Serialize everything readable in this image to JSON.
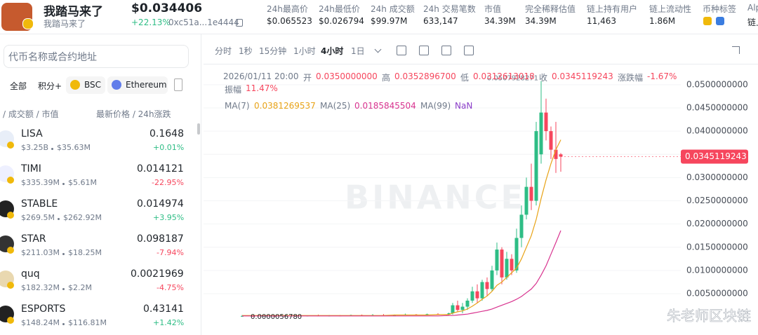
{
  "header": {
    "name": "我踏马来了",
    "subname": "我踏马来了",
    "price": "$0.034406",
    "change": "+22.13%",
    "address": "0xc51a...1e4444",
    "stats": [
      {
        "label": "24h最高价",
        "value": "$0.065523"
      },
      {
        "label": "24h最低价",
        "value": "$0.026794"
      },
      {
        "label": "24h 成交额",
        "value": "$99.97M"
      },
      {
        "label": "24h 交易笔数",
        "value": "633,147"
      },
      {
        "label": "市值",
        "value": "34.39M"
      },
      {
        "label": "完全稀释估值",
        "value": "34.39M"
      },
      {
        "label": "链上持有用户",
        "value": "11,463"
      },
      {
        "label": "链上流动性",
        "value": "1.86M"
      },
      {
        "label": "币种标签",
        "value": ""
      },
      {
        "label": "Alp",
        "value": "链上"
      }
    ]
  },
  "sidebar": {
    "search_placeholder": "代币名称或合约地址",
    "tabs": [
      "全部",
      "积分+",
      "BSC",
      "Ethereum"
    ],
    "col_left": "/ 成交额 / 市值",
    "col_right": "最新价格 / 24h涨跌",
    "tokens": [
      {
        "symbol": "LISA",
        "volume": "$3.25B",
        "mcap": "$35.63M",
        "price": "0.1648",
        "change": "+0.01%"
      },
      {
        "symbol": "TIMI",
        "volume": "$335.39M",
        "mcap": "$5.61M",
        "price": "0.014121",
        "change": "-22.95%"
      },
      {
        "symbol": "STABLE",
        "volume": "$269.5M",
        "mcap": "$262.92M",
        "price": "0.014974",
        "change": "+3.95%"
      },
      {
        "symbol": "STAR",
        "volume": "$211.03M",
        "mcap": "$18.25M",
        "price": "0.098187",
        "change": "-7.94%"
      },
      {
        "symbol": "quq",
        "volume": "$182.32M",
        "mcap": "$2.2M",
        "price": "0.0021969",
        "change": "-4.75%"
      },
      {
        "symbol": "ESPORTS",
        "volume": "$148.24M",
        "mcap": "$116.81M",
        "price": "0.43141",
        "change": "+1.42%"
      }
    ]
  },
  "toolbar": {
    "intervals": [
      "分时",
      "1秒",
      "15分钟",
      "1小时",
      "4小时",
      "1日"
    ],
    "active_index": 4
  },
  "chart": {
    "time": "2026/01/11 20:00",
    "fields": [
      {
        "label": "开",
        "value": "0.0350000000"
      },
      {
        "label": "高",
        "value": "0.0352896700"
      },
      {
        "label": "低",
        "value": "0.0312613018"
      },
      {
        "label": "收",
        "value": "0.0345119243"
      },
      {
        "label": "涨跌幅",
        "value": "-1.67%"
      }
    ],
    "amp_label": "振幅",
    "amp": "11.47%",
    "ma": [
      {
        "label": "MA(7)",
        "value": "0.0381269537",
        "color": "#e8a317"
      },
      {
        "label": "MA(25)",
        "value": "0.0185845504",
        "color": "#d8338f"
      },
      {
        "label": "MA(99)",
        "value": "NaN",
        "color": "#8a3cc8"
      }
    ],
    "ylim": [
      -0.0039,
      0.0539
    ],
    "yticks": [
      {
        "value": 0.05,
        "label": "0.0500000000"
      },
      {
        "value": 0.045,
        "label": "0.0450000000"
      },
      {
        "value": 0.04,
        "label": "0.0400000000"
      },
      {
        "value": 0.035,
        "label": "0.0350000000"
      },
      {
        "value": 0.03,
        "label": "0.0300000000"
      },
      {
        "value": 0.025,
        "label": "0.0250000000"
      },
      {
        "value": 0.02,
        "label": "0.0200000000"
      },
      {
        "value": 0.015,
        "label": "0.0150000000"
      },
      {
        "value": 0.01,
        "label": "0.0100000000"
      },
      {
        "value": 0.005,
        "label": "0.0050000000"
      }
    ],
    "up_color": "#2ebd85",
    "down_color": "#f6465d",
    "candles": [
      [
        0.0001,
        0.0004,
        5.678e-06,
        0.0002
      ],
      [
        0.0002,
        0.0003,
        0.0001,
        0.0001
      ],
      [
        0.0001,
        0.0003,
        5e-05,
        0.0002
      ],
      [
        0.0002,
        0.0003,
        0.0001,
        0.0001
      ],
      [
        0.0001,
        0.0004,
        0.0001,
        0.0003
      ],
      [
        0.0003,
        0.0004,
        0.0001,
        0.0002
      ],
      [
        0.0002,
        0.0003,
        0.0001,
        0.0003
      ],
      [
        0.0003,
        0.0005,
        0.0002,
        0.0002
      ],
      [
        0.0002,
        0.0004,
        0.0001,
        0.0003
      ],
      [
        0.0003,
        0.0004,
        0.0002,
        0.0002
      ],
      [
        0.0002,
        0.0005,
        0.0002,
        0.0004
      ],
      [
        0.0004,
        0.0005,
        0.0002,
        0.0003
      ],
      [
        0.0003,
        0.0006,
        0.0002,
        0.0004
      ],
      [
        0.0004,
        0.0006,
        0.0003,
        0.0003
      ],
      [
        0.0003,
        0.0005,
        0.0002,
        0.0004
      ],
      [
        0.0004,
        0.0007,
        0.0003,
        0.0005
      ],
      [
        0.0005,
        0.0006,
        0.0003,
        0.0004
      ],
      [
        0.0004,
        0.0007,
        0.0003,
        0.0006
      ],
      [
        0.0006,
        0.0008,
        0.0004,
        0.0005
      ],
      [
        0.0005,
        0.0009,
        0.0004,
        0.0008
      ],
      [
        0.0008,
        0.003,
        0.0005,
        0.0025
      ],
      [
        0.0025,
        0.0035,
        0.001,
        0.0015
      ],
      [
        0.0015,
        0.003,
        0.0008,
        0.0022
      ],
      [
        0.0022,
        0.004,
        0.0015,
        0.0035
      ],
      [
        0.0035,
        0.0065,
        0.003,
        0.0055
      ],
      [
        0.0055,
        0.007,
        0.003,
        0.004
      ],
      [
        0.004,
        0.008,
        0.0035,
        0.0075
      ],
      [
        0.0075,
        0.0085,
        0.0045,
        0.006
      ],
      [
        0.006,
        0.011,
        0.0055,
        0.01
      ],
      [
        0.01,
        0.016,
        0.009,
        0.0145
      ],
      [
        0.0145,
        0.015,
        0.007,
        0.0085
      ],
      [
        0.0085,
        0.014,
        0.008,
        0.0125
      ],
      [
        0.0125,
        0.0135,
        0.009,
        0.01
      ],
      [
        0.01,
        0.019,
        0.0095,
        0.017
      ],
      [
        0.017,
        0.024,
        0.015,
        0.022
      ],
      [
        0.022,
        0.03,
        0.021,
        0.028
      ],
      [
        0.028,
        0.033,
        0.023,
        0.025
      ],
      [
        0.025,
        0.042,
        0.024,
        0.04
      ],
      [
        0.035,
        0.0507928271,
        0.033,
        0.044
      ],
      [
        0.044,
        0.047,
        0.038,
        0.04
      ],
      [
        0.04,
        0.041,
        0.034,
        0.036
      ],
      [
        0.036,
        0.042,
        0.031,
        0.034
      ],
      [
        0.035,
        0.03528967,
        0.0312613018,
        0.0345119243
      ]
    ],
    "ma7": [
      0.0003,
      0.0003,
      0.0003,
      0.0003,
      0.0003,
      0.0003,
      0.0003,
      0.0003,
      0.0003,
      0.0003,
      0.0003,
      0.0003,
      0.0003,
      0.0003,
      0.0004,
      0.0004,
      0.0004,
      0.0004,
      0.0005,
      0.0005,
      0.0008,
      0.0011,
      0.0013,
      0.0017,
      0.0023,
      0.003,
      0.0038,
      0.0045,
      0.0055,
      0.0068,
      0.0075,
      0.0085,
      0.0095,
      0.0105,
      0.0125,
      0.015,
      0.0175,
      0.021,
      0.0255,
      0.0295,
      0.033,
      0.036,
      0.0381269537
    ],
    "ma25": [
      0.0002,
      0.0002,
      0.0002,
      0.0002,
      0.0002,
      0.0002,
      0.0002,
      0.0002,
      0.0002,
      0.0002,
      0.0002,
      0.0002,
      0.0002,
      0.0002,
      0.0002,
      0.0002,
      0.0002,
      0.0002,
      0.0002,
      0.0003,
      0.0003,
      0.0004,
      0.0005,
      0.0006,
      0.0008,
      0.001,
      0.0012,
      0.0014,
      0.0017,
      0.0021,
      0.0025,
      0.0029,
      0.0033,
      0.0038,
      0.0044,
      0.0052,
      0.006,
      0.0072,
      0.009,
      0.011,
      0.0135,
      0.016,
      0.0185845504
    ],
    "last_price": "0.0345119243",
    "high_mark": "0.0507928271",
    "low_mark": "0.0000056780",
    "watermark": "BINANCE",
    "credit": "朱老师区块链"
  }
}
